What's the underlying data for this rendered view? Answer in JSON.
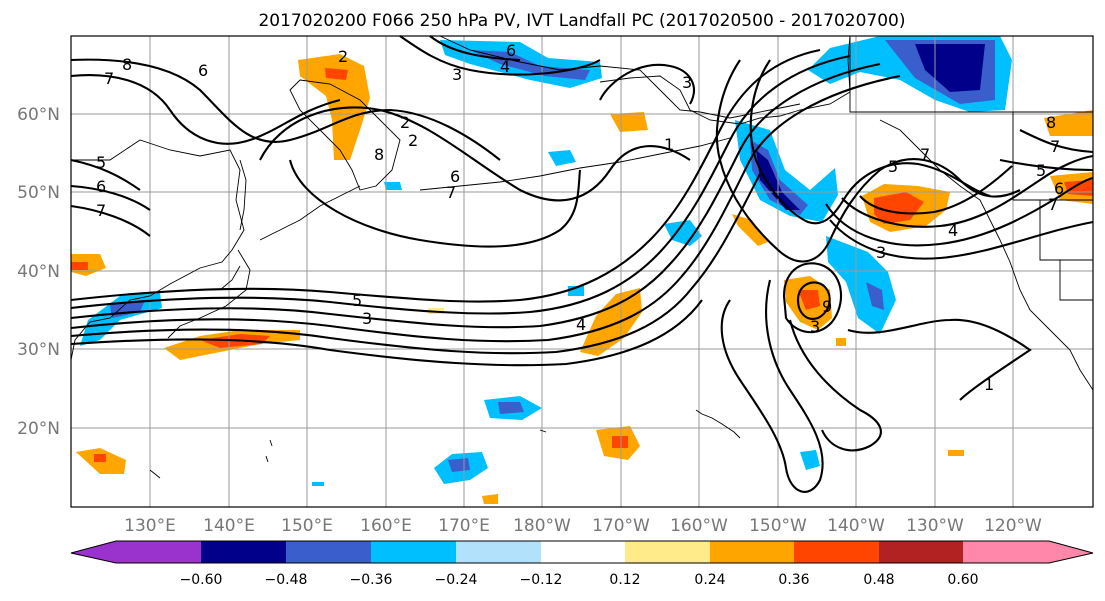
{
  "title": "2017020200 F066 250 hPa PV, IVT Landfall PC (2017020500 - 2017020700)",
  "latitude_labels": [
    "60°N",
    "50°N",
    "40°N",
    "30°N",
    "20°N"
  ],
  "longitude_labels": [
    "130°E",
    "140°E",
    "150°E",
    "160°E",
    "170°E",
    "180°W",
    "170°W",
    "160°W",
    "150°W",
    "140°W",
    "130°W",
    "120°W"
  ],
  "colorbar": {
    "tick_labels": [
      "−0.60",
      "−0.48",
      "−0.36",
      "−0.24",
      "−0.12",
      "0.12",
      "0.24",
      "0.36",
      "0.48",
      "0.60"
    ],
    "colors": [
      "#9a32cd",
      "#00008b",
      "#3a5fcd",
      "#00bfff",
      "#b2e1fb",
      "#ffffff",
      "#ffeb8a",
      "#ffa500",
      "#ff4500",
      "#b22222",
      "#ff88aa"
    ]
  },
  "contour_labels": [
    "8",
    "7",
    "6",
    "2",
    "6",
    "4",
    "3",
    "3",
    "5",
    "6",
    "7",
    "8",
    "6",
    "7",
    "5",
    "3",
    "4",
    "1",
    "9",
    "3",
    "5",
    "7",
    "8",
    "7",
    "5",
    "6",
    "7",
    "4",
    "3",
    "1",
    "2",
    "2"
  ]
}
